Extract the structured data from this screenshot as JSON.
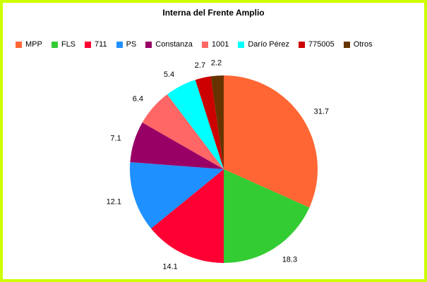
{
  "window": {
    "background": "#FFFFFF",
    "border_color": "#CCFF00"
  },
  "chart_data": {
    "type": "pie",
    "title": "Interna del Frente Amplio",
    "legend_position": "top",
    "labels": "outside-values",
    "start_angle_deg": 0,
    "direction": "clockwise",
    "categories": [
      "MPP",
      "FLS",
      "711",
      "PS",
      "Constanza",
      "1001",
      "Darío Pérez",
      "775005",
      "Otros"
    ],
    "values": [
      31.7,
      18.3,
      14.1,
      12.1,
      7.1,
      6.4,
      5.4,
      2.7,
      2.2
    ],
    "colors": [
      "#FF6633",
      "#33CC33",
      "#FF0033",
      "#1E90FF",
      "#990066",
      "#FF6666",
      "#00FFFF",
      "#CC0000",
      "#663300"
    ]
  }
}
